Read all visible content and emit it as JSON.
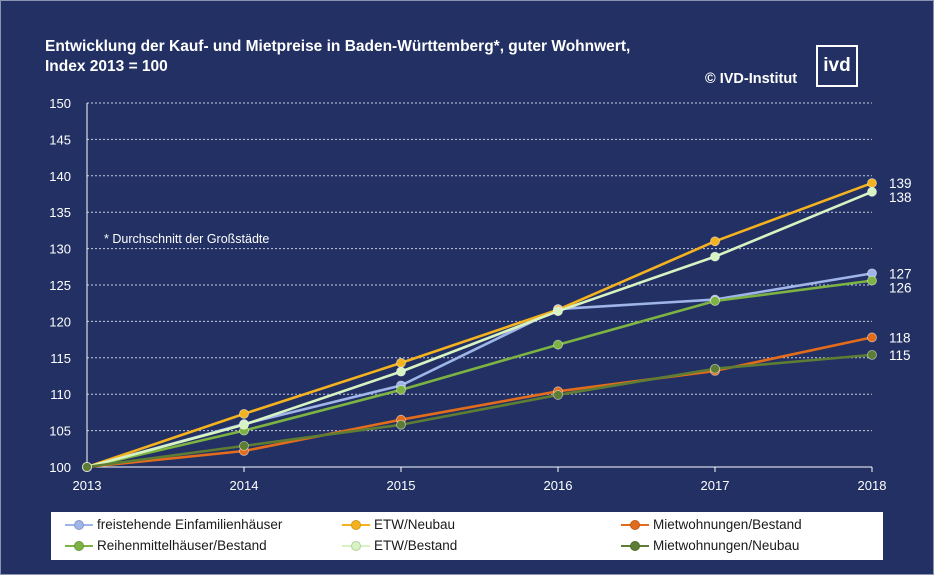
{
  "title": "Entwicklung der Kauf- und Mietpreise in Baden-Württemberg*, guter Wohnwert,\nIndex 2013 = 100",
  "copyright": "© IVD-Institut",
  "logo_text": "ivd",
  "footnote": "* Durchschnitt der Großstädte",
  "colors": {
    "background": "#223063",
    "grid": "#c7cce0",
    "text": "#ffffff"
  },
  "chart_data": {
    "type": "line",
    "x": [
      2013,
      2014,
      2015,
      2016,
      2017,
      2018
    ],
    "ylim": [
      100,
      150
    ],
    "yticks": [
      100,
      105,
      110,
      115,
      120,
      125,
      130,
      135,
      140,
      145,
      150
    ],
    "grid": true,
    "legend_position": "bottom",
    "series": [
      {
        "name": "freistehende Einfamilienhäuser",
        "color": "#9fb4e8",
        "values": [
          100,
          105.9,
          111.2,
          121.7,
          123.0,
          126.6
        ],
        "end_label": "127"
      },
      {
        "name": "ETW/Neubau",
        "color": "#f5b21f",
        "values": [
          100,
          107.3,
          114.3,
          121.6,
          131.0,
          139.0
        ],
        "end_label": "139"
      },
      {
        "name": "Mietwohnungen/Bestand",
        "color": "#e36c1c",
        "values": [
          100,
          102.2,
          106.5,
          110.4,
          113.2,
          117.8
        ],
        "end_label": "118"
      },
      {
        "name": "Reihenmittelhäuser/Bestand",
        "color": "#7cb342",
        "values": [
          100,
          105.0,
          110.6,
          116.8,
          122.8,
          125.6
        ],
        "end_label": "126"
      },
      {
        "name": "ETW/Bestand",
        "color": "#d7f3c2",
        "values": [
          100,
          105.8,
          113.1,
          121.4,
          128.9,
          137.8
        ],
        "end_label": "138"
      },
      {
        "name": "Mietwohnungen/Neubau",
        "color": "#5e7d34",
        "values": [
          100,
          102.9,
          105.8,
          109.9,
          113.5,
          115.4
        ],
        "end_label": "115"
      }
    ]
  }
}
